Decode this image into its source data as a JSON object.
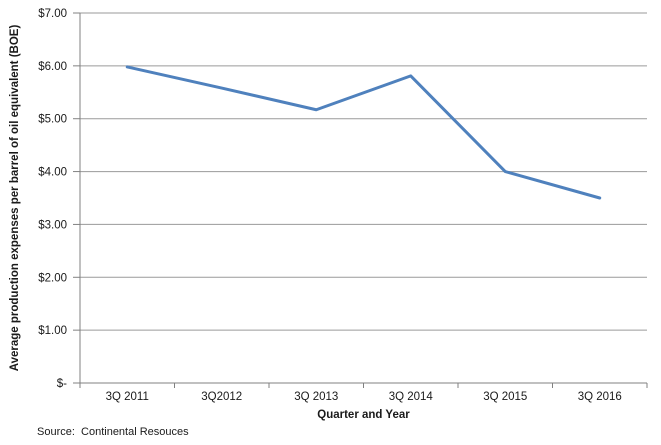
{
  "chart_data": {
    "type": "line",
    "categories": [
      "3Q 2011",
      "3Q2012",
      "3Q 2013",
      "3Q 2014",
      "3Q 2015",
      "3Q 2016"
    ],
    "values": [
      5.98,
      5.58,
      5.17,
      5.81,
      4.0,
      3.5
    ],
    "title": "",
    "xlabel": "Quarter and Year",
    "ylabel": "Average production expenses per barrel of oil equivalent (BOE)",
    "ylim": [
      0,
      7
    ],
    "ytick_step": 1,
    "ytick_labels": [
      "$-",
      "$1.00",
      "$2.00",
      "$3.00",
      "$4.00",
      "$5.00",
      "$6.00",
      "$7.00"
    ],
    "grid": "horizontal-major",
    "legend": "none"
  },
  "source_note": "Source:  Continental Resouces",
  "colors": {
    "line": "#4F81BD",
    "gridline": "#9a9a9a",
    "axis": "#808080",
    "text": "#1a1a1a",
    "background": "#ffffff"
  }
}
